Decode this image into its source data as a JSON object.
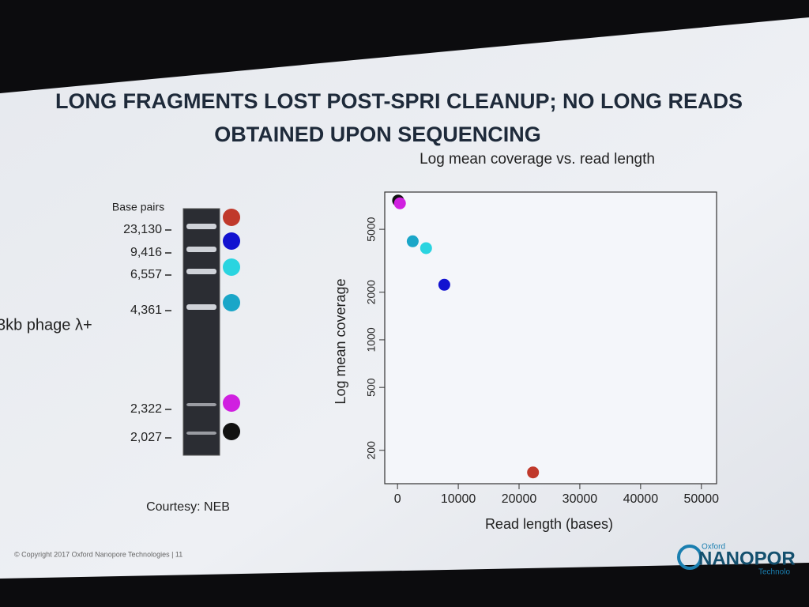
{
  "slide": {
    "title_lines": [
      "LONG FRAGMENTS LOST POST-SPRI CLEANUP; NO LONG READS",
      "OBTAINED UPON SEQUENCING"
    ],
    "side_label": "3kb phage λ+",
    "courtesy": "Courtesy: NEB",
    "footer": "© Copyright 2017 Oxford Nanopore Technologies  |  11",
    "logo": {
      "top": "Oxford",
      "main": "NANOPOR",
      "bottom": "Technolo"
    }
  },
  "gel": {
    "title": "Base pairs",
    "bands": [
      {
        "label": "23,130",
        "color": "#c0392b"
      },
      {
        "label": "9,416",
        "color": "#1212d0"
      },
      {
        "label": "6,557",
        "color": "#2ad4e0"
      },
      {
        "label": "4,361",
        "color": "#1aa6c8"
      },
      {
        "label": "2,322",
        "color": "#d020e0"
      },
      {
        "label": "2,027",
        "color": "#111111"
      }
    ]
  },
  "chart_data": {
    "type": "scatter",
    "title": "Log mean coverage vs. read length",
    "x_label": "Read length (bases)",
    "y_label": "Log mean coverage",
    "x": [
      100,
      400,
      2500,
      4700,
      7700,
      22300
    ],
    "values": [
      7600,
      7300,
      4200,
      3800,
      2230,
      145
    ],
    "colors": [
      "#111111",
      "#d020e0",
      "#1aa6c8",
      "#2ad4e0",
      "#1212d0",
      "#c0392b"
    ],
    "xlim": [
      -2100,
      52500
    ],
    "ylim": [
      123,
      8600
    ],
    "log_y": true,
    "xticks": [
      0,
      10000,
      20000,
      30000,
      40000,
      50000
    ],
    "yticks": [
      200,
      500,
      1000,
      2000,
      5000
    ]
  }
}
